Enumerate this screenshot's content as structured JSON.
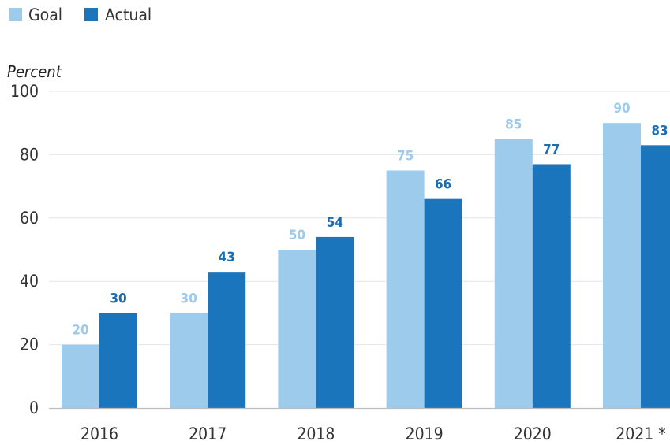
{
  "chart_data": {
    "type": "bar",
    "ylabel": "Percent",
    "ylim": [
      0,
      100
    ],
    "yticks": [
      0,
      20,
      40,
      60,
      80,
      100
    ],
    "grid": true,
    "legend_position": "top-left",
    "categories": [
      "2016",
      "2017",
      "2018",
      "2019",
      "2020",
      "2021 *"
    ],
    "series": [
      {
        "name": "Goal",
        "color": "#9dcbeb",
        "label_color": "#9dcbeb",
        "label_weight": "normal",
        "values": [
          20,
          30,
          50,
          75,
          85,
          90
        ]
      },
      {
        "name": "Actual",
        "color": "#1a75bc",
        "label_color": "#1a6db3",
        "label_weight": "bold",
        "values": [
          30,
          43,
          54,
          66,
          77,
          83
        ]
      }
    ]
  }
}
